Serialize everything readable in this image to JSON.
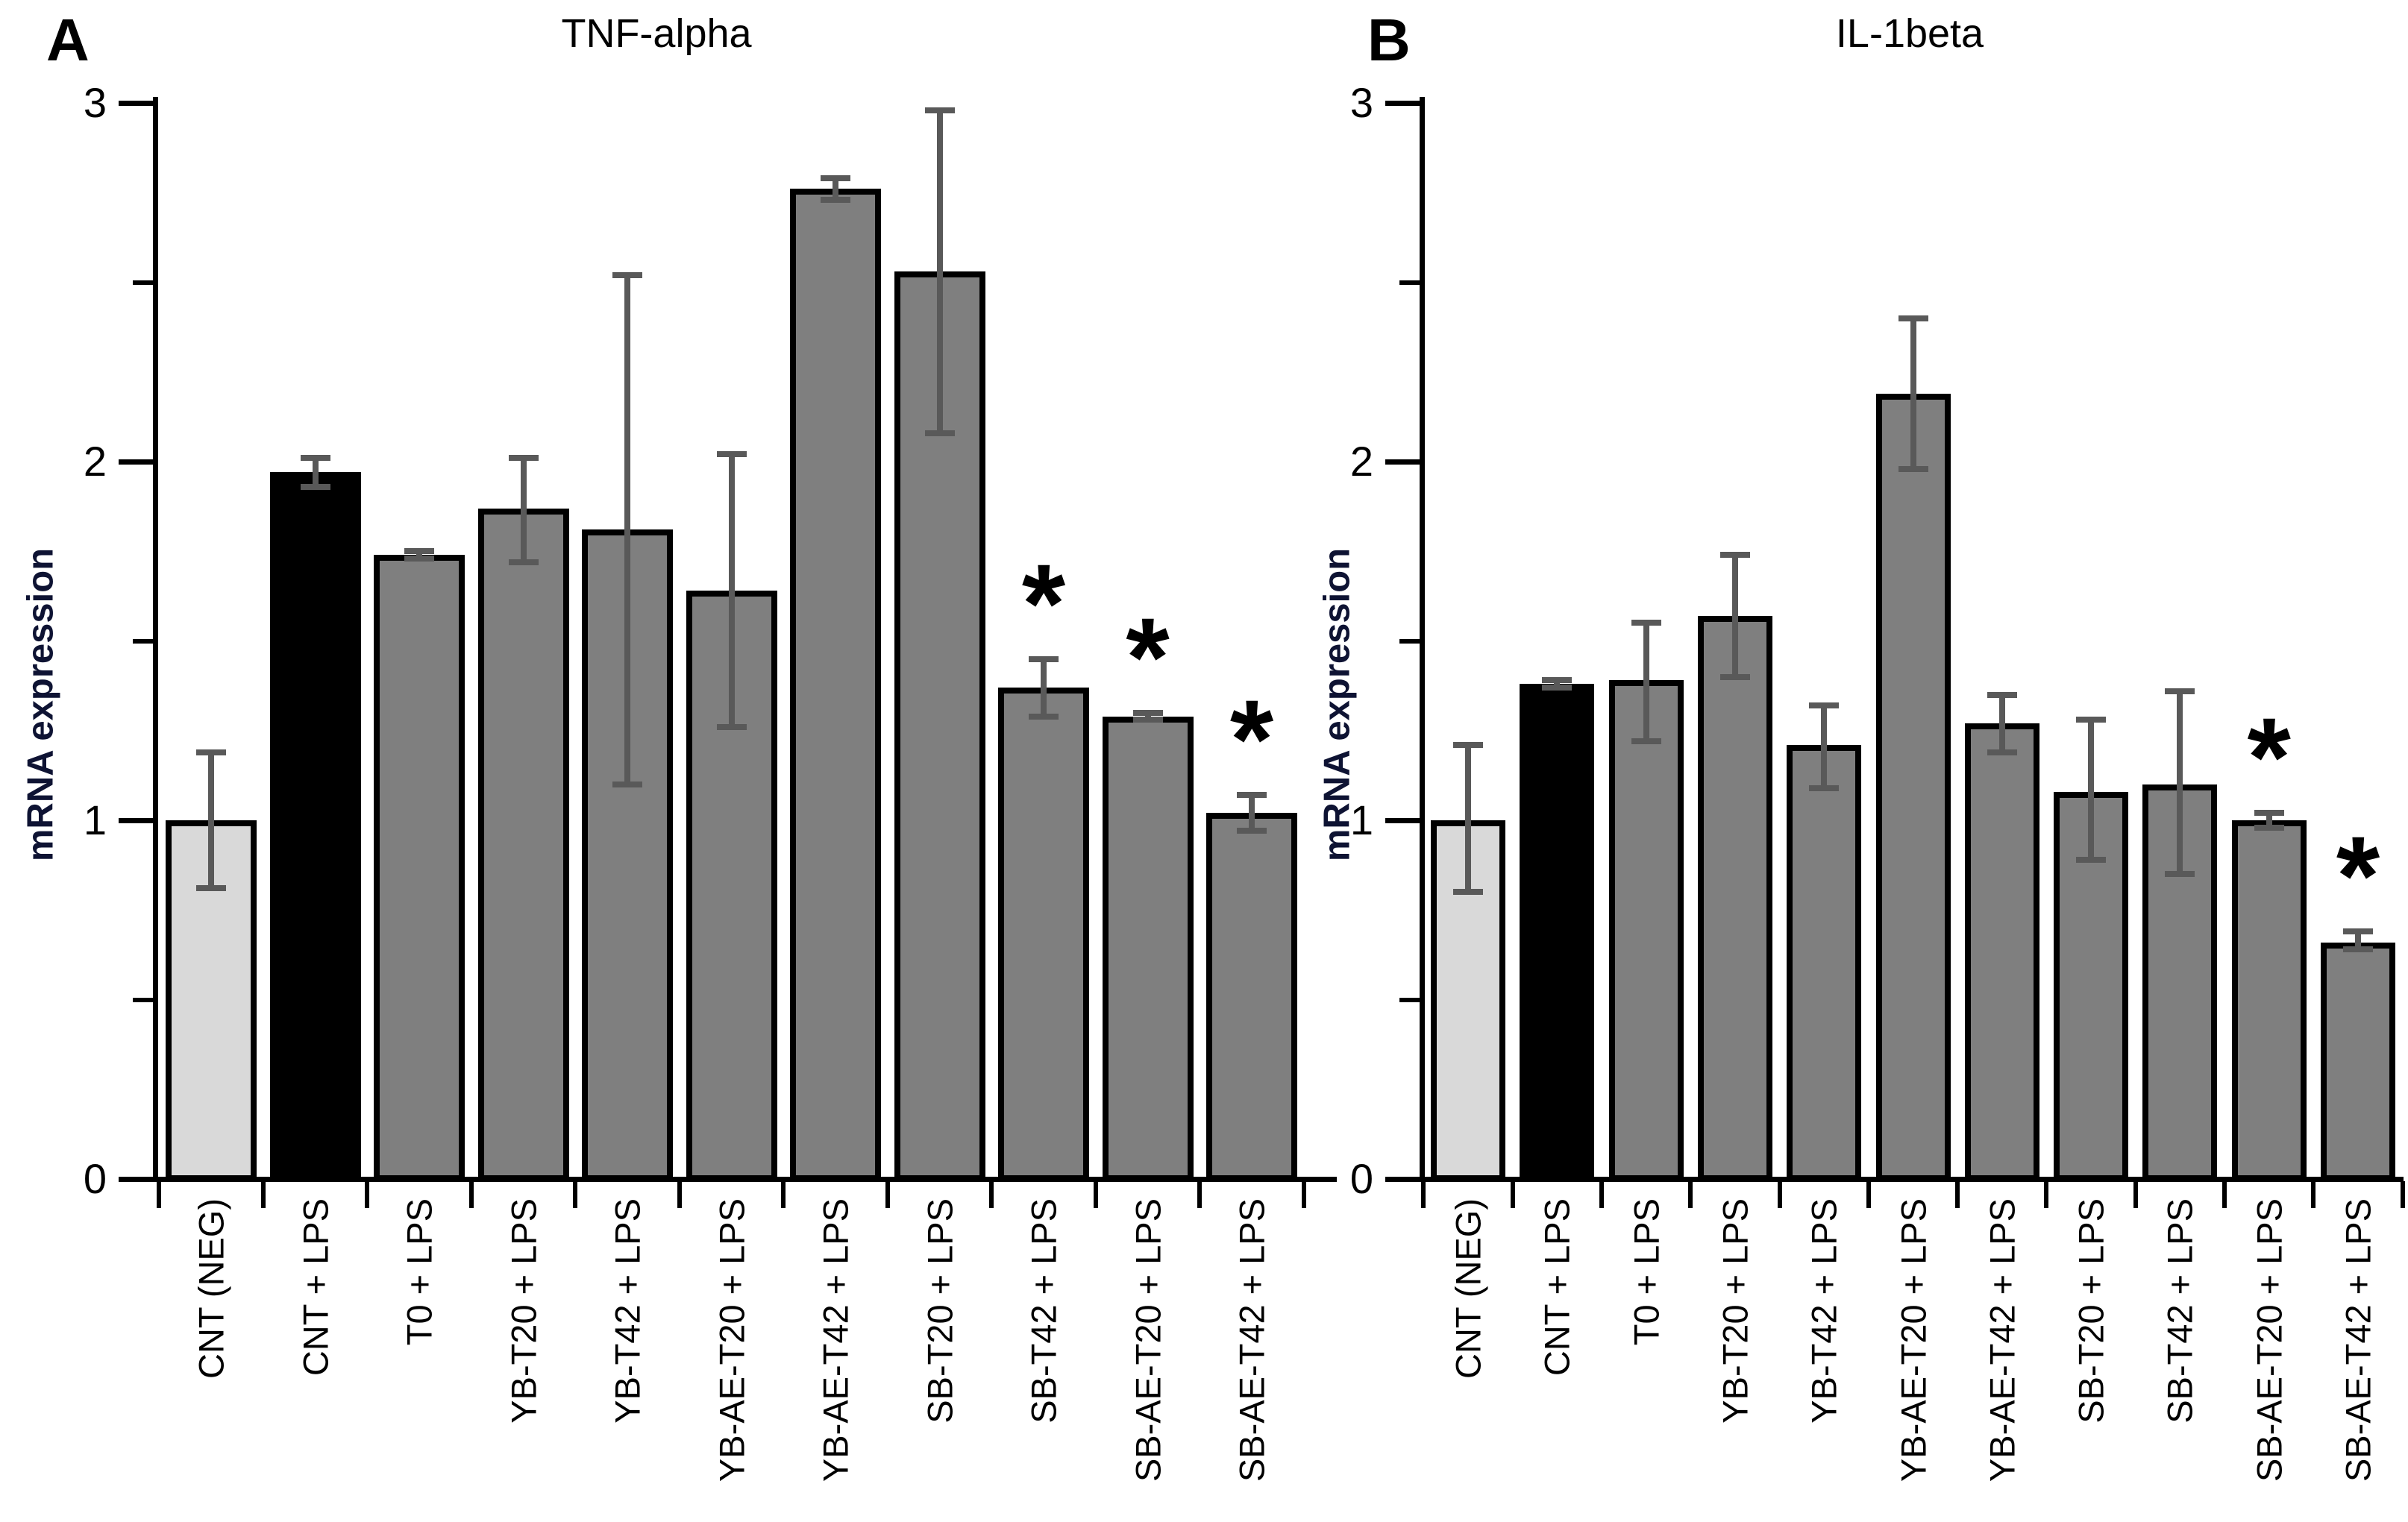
{
  "styles": {
    "bar_gray": "#7f7f7f",
    "bar_light_gray": "#d9d9d9",
    "bar_black": "#000000",
    "error_color": "#595959",
    "axis_color": "#000000",
    "ylabel_color": "#0e1333",
    "sig_marker": "*"
  },
  "chart_data": [
    {
      "type": "bar",
      "panel_letter": "A",
      "title": "TNF-alpha",
      "ylabel": "mRNA expression",
      "xlabel": "",
      "ylim": [
        0,
        3
      ],
      "ytick_values": [
        0,
        1,
        2,
        3
      ],
      "ytick_labels": [
        "0",
        "1",
        "2",
        "3"
      ],
      "minor_tick_values": [
        0.5,
        1.5,
        2.5
      ],
      "grid": false,
      "legend": "none",
      "categories": [
        "CNT (NEG)",
        "CNT + LPS",
        "T0 + LPS",
        "YB-T20 + LPS",
        "YB-T42 + LPS",
        "YB-AE-T20 + LPS",
        "YB-AE-T42 + LPS",
        "SB-T20 + LPS",
        "SB-T42 + LPS",
        "SB-AE-T20 + LPS",
        "SB-AE-T42 + LPS"
      ],
      "values": [
        1.0,
        1.97,
        1.74,
        1.87,
        1.81,
        1.64,
        2.76,
        2.53,
        1.37,
        1.29,
        1.02
      ],
      "err_lo": [
        0.81,
        1.93,
        1.73,
        1.72,
        1.1,
        1.26,
        2.73,
        2.08,
        1.29,
        1.28,
        0.97
      ],
      "err_hi": [
        1.19,
        2.01,
        1.75,
        2.01,
        2.52,
        2.02,
        2.79,
        2.98,
        1.45,
        1.3,
        1.07
      ],
      "significant": [
        false,
        false,
        false,
        false,
        false,
        false,
        false,
        false,
        true,
        true,
        true
      ],
      "bar_color_keys": [
        "bar_light_gray",
        "bar_black",
        "bar_gray",
        "bar_gray",
        "bar_gray",
        "bar_gray",
        "bar_gray",
        "bar_gray",
        "bar_gray",
        "bar_gray",
        "bar_gray"
      ]
    },
    {
      "type": "bar",
      "panel_letter": "B",
      "title": "IL-1beta",
      "ylabel": "mRNA expression",
      "xlabel": "",
      "ylim": [
        0,
        3
      ],
      "ytick_values": [
        0,
        1,
        2,
        3
      ],
      "ytick_labels": [
        "0",
        "1",
        "2",
        "3"
      ],
      "minor_tick_values": [
        0.5,
        1.5,
        2.5
      ],
      "grid": false,
      "legend": "none",
      "categories": [
        "CNT (NEG)",
        "CNT + LPS",
        "T0 + LPS",
        "YB-T20 + LPS",
        "YB-T42 + LPS",
        "YB-AE-T20 + LPS",
        "YB-AE-T42 + LPS",
        "SB-T20 + LPS",
        "SB-T42 + LPS",
        "SB-AE-T20 + LPS",
        "SB-AE-T42 + LPS"
      ],
      "values": [
        1.0,
        1.38,
        1.39,
        1.57,
        1.21,
        2.19,
        1.27,
        1.08,
        1.1,
        1.0,
        0.66
      ],
      "err_lo": [
        0.8,
        1.37,
        1.22,
        1.4,
        1.09,
        1.98,
        1.19,
        0.89,
        0.85,
        0.98,
        0.64
      ],
      "err_hi": [
        1.21,
        1.39,
        1.55,
        1.74,
        1.32,
        2.4,
        1.35,
        1.28,
        1.36,
        1.02,
        0.69
      ],
      "significant": [
        false,
        false,
        false,
        false,
        false,
        false,
        false,
        false,
        false,
        true,
        true
      ],
      "bar_color_keys": [
        "bar_light_gray",
        "bar_black",
        "bar_gray",
        "bar_gray",
        "bar_gray",
        "bar_gray",
        "bar_gray",
        "bar_gray",
        "bar_gray",
        "bar_gray",
        "bar_gray"
      ]
    }
  ]
}
